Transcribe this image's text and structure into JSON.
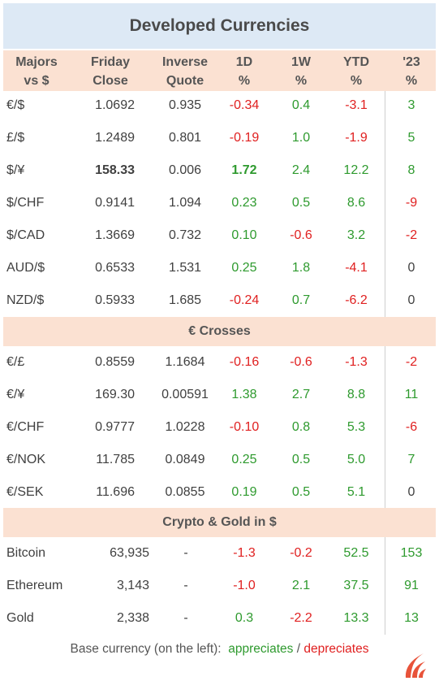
{
  "title": "Developed Currencies",
  "headers": [
    {
      "l1": "Majors",
      "l2": "vs $"
    },
    {
      "l1": "Friday",
      "l2": "Close"
    },
    {
      "l1": "Inverse",
      "l2": "Quote"
    },
    {
      "l1": "1D",
      "l2": "%"
    },
    {
      "l1": "1W",
      "l2": "%"
    },
    {
      "l1": "YTD",
      "l2": "%"
    },
    {
      "l1": "'23",
      "l2": "%"
    }
  ],
  "colors": {
    "positive": "#2e9a2e",
    "negative": "#e02020",
    "header_bg": "#fbe1d2",
    "title_bg": "#dde9f5"
  },
  "majors": [
    {
      "pair": "€/$",
      "close": "1.0692",
      "inverse": "0.935",
      "d1": "-0.34",
      "w1": "0.4",
      "ytd": "-3.1",
      "y23": "3"
    },
    {
      "pair": "£/$",
      "close": "1.2489",
      "inverse": "0.801",
      "d1": "-0.19",
      "w1": "1.0",
      "ytd": "-1.9",
      "y23": "5"
    },
    {
      "pair": "$/¥",
      "close": "158.33",
      "inverse": "0.006",
      "d1": "1.72",
      "w1": "2.4",
      "ytd": "12.2",
      "y23": "8"
    },
    {
      "pair": "$/CHF",
      "close": "0.9141",
      "inverse": "1.094",
      "d1": "0.23",
      "w1": "0.5",
      "ytd": "8.6",
      "y23": "-9"
    },
    {
      "pair": "$/CAD",
      "close": "1.3669",
      "inverse": "0.732",
      "d1": "0.10",
      "w1": "-0.6",
      "ytd": "3.2",
      "y23": "-2"
    },
    {
      "pair": "AUD/$",
      "close": "0.6533",
      "inverse": "1.531",
      "d1": "0.25",
      "w1": "1.8",
      "ytd": "-4.1",
      "y23": "0"
    },
    {
      "pair": "NZD/$",
      "close": "0.5933",
      "inverse": "1.685",
      "d1": "-0.24",
      "w1": "0.7",
      "ytd": "-6.2",
      "y23": "0"
    }
  ],
  "crosses_title": "€ Crosses",
  "crosses": [
    {
      "pair": "€/£",
      "close": "0.8559",
      "inverse": "1.1684",
      "d1": "-0.16",
      "w1": "-0.6",
      "ytd": "-1.3",
      "y23": "-2"
    },
    {
      "pair": "€/¥",
      "close": "169.30",
      "inverse": "0.00591",
      "d1": "1.38",
      "w1": "2.7",
      "ytd": "8.8",
      "y23": "11"
    },
    {
      "pair": "€/CHF",
      "close": "0.9777",
      "inverse": "1.0228",
      "d1": "-0.10",
      "w1": "0.8",
      "ytd": "5.3",
      "y23": "-6"
    },
    {
      "pair": "€/NOK",
      "close": "11.785",
      "inverse": "0.0849",
      "d1": "0.25",
      "w1": "0.5",
      "ytd": "5.0",
      "y23": "7"
    },
    {
      "pair": "€/SEK",
      "close": "11.696",
      "inverse": "0.0855",
      "d1": "0.19",
      "w1": "0.5",
      "ytd": "5.1",
      "y23": "0"
    }
  ],
  "crypto_title": "Crypto & Gold in $",
  "crypto": [
    {
      "pair": "Bitcoin",
      "close": "63,935",
      "inverse": "-",
      "d1": "-1.3",
      "w1": "-0.2",
      "ytd": "52.5",
      "y23": "153"
    },
    {
      "pair": "Ethereum",
      "close": "3,143",
      "inverse": "-",
      "d1": "-1.0",
      "w1": "2.1",
      "ytd": "37.5",
      "y23": "91"
    },
    {
      "pair": "Gold",
      "close": "2,338",
      "inverse": "-",
      "d1": "0.3",
      "w1": "-2.2",
      "ytd": "13.3",
      "y23": "13"
    }
  ],
  "footer": {
    "prefix": "Base currency (on the left):",
    "appreciates": "appreciates",
    "slash": "/",
    "depreciates": "depreciates"
  },
  "logo": "flame-logo-icon"
}
